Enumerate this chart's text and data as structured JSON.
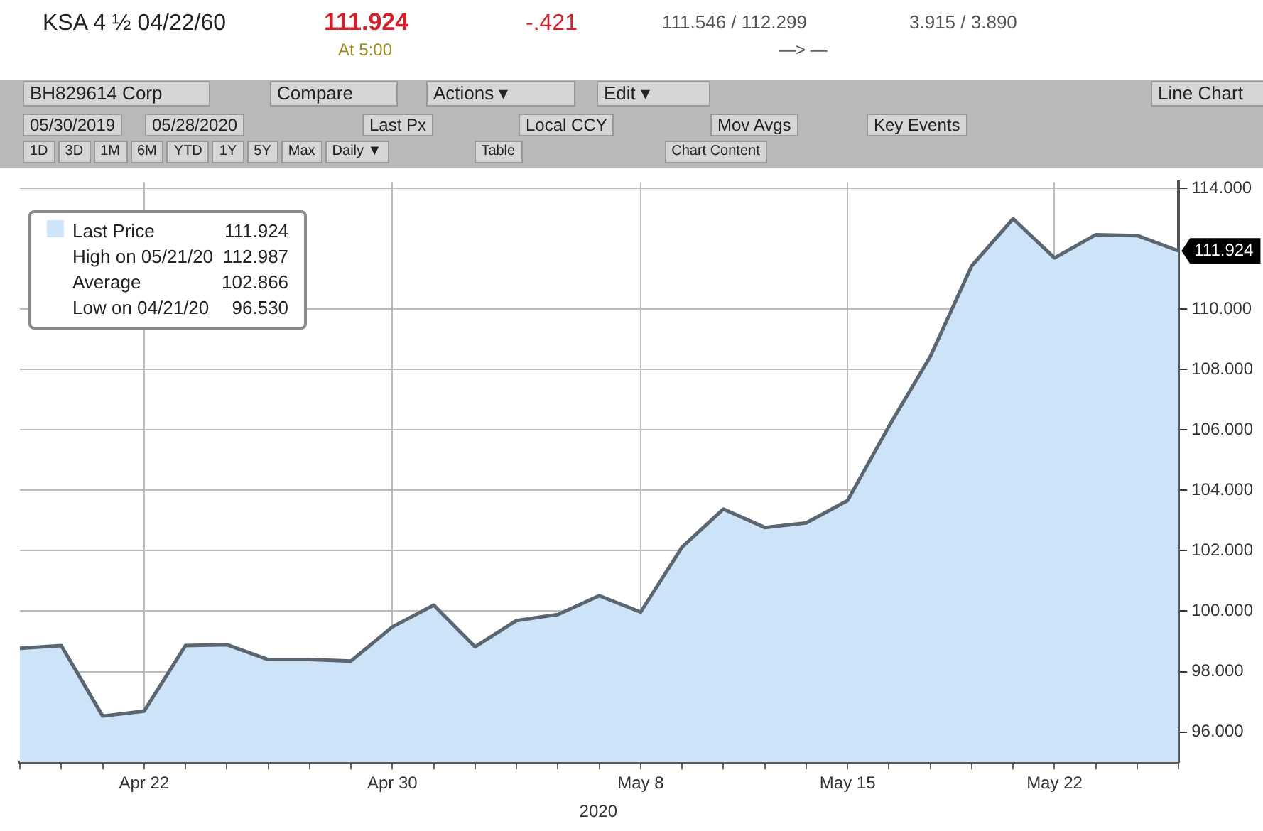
{
  "chart_data": {
    "type": "area",
    "title": "KSA 4 ½ 04/22/60",
    "xlabel": "2020",
    "categories": [
      null,
      null,
      null,
      "Apr 22",
      null,
      null,
      null,
      null,
      null,
      "Apr 30",
      null,
      null,
      null,
      null,
      null,
      "May 8",
      null,
      null,
      null,
      null,
      "May 15",
      null,
      null,
      null,
      null,
      "May 22",
      null,
      null,
      null
    ],
    "series": [
      {
        "name": "Last Price",
        "color": "#cce3f8",
        "values": [
          98.77,
          98.86,
          96.53,
          96.69,
          98.86,
          98.89,
          98.4,
          98.4,
          98.35,
          99.48,
          100.2,
          98.82,
          99.69,
          99.89,
          100.51,
          99.97,
          102.12,
          103.38,
          102.77,
          102.92,
          103.66,
          106.12,
          108.43,
          111.43,
          112.987,
          111.69,
          112.46,
          112.43,
          111.924
        ]
      }
    ],
    "ylim": [
      95,
      114.2
    ],
    "yticks": [
      {
        "value": 96,
        "label": "96.000"
      },
      {
        "value": 98,
        "label": "98.000"
      },
      {
        "value": 100,
        "label": "100.000"
      },
      {
        "value": 102,
        "label": "102.000"
      },
      {
        "value": 104,
        "label": "104.000"
      },
      {
        "value": 106,
        "label": "106.000"
      },
      {
        "value": 108,
        "label": "108.000"
      },
      {
        "value": 110,
        "label": "110.000"
      },
      {
        "value": 114,
        "label": "114.000"
      }
    ],
    "grid": true,
    "legend": "top left",
    "annotations": [
      "111.924",
      "111.924",
      "High on 05/21/20",
      "112.987",
      "Average",
      "102.866",
      "Low on 04/21/20",
      "96.530",
      "111.924",
      "-.421",
      "111.546 / 112.299",
      "3.915 / 3.890",
      "At 5:00",
      "—> —",
      "BH829614 Corp",
      "Compare",
      "Actions ▾",
      "Edit ▾",
      "Line Chart",
      "05/30/2019",
      "05/28/2020",
      "Last Px",
      "Local CCY",
      "Mov Avgs",
      "Key Events",
      "1D",
      "3D",
      "1M",
      "6M",
      "YTD",
      "1Y",
      "5Y",
      "Max",
      "Daily ▼",
      "Table",
      "Chart Content"
    ]
  }
}
